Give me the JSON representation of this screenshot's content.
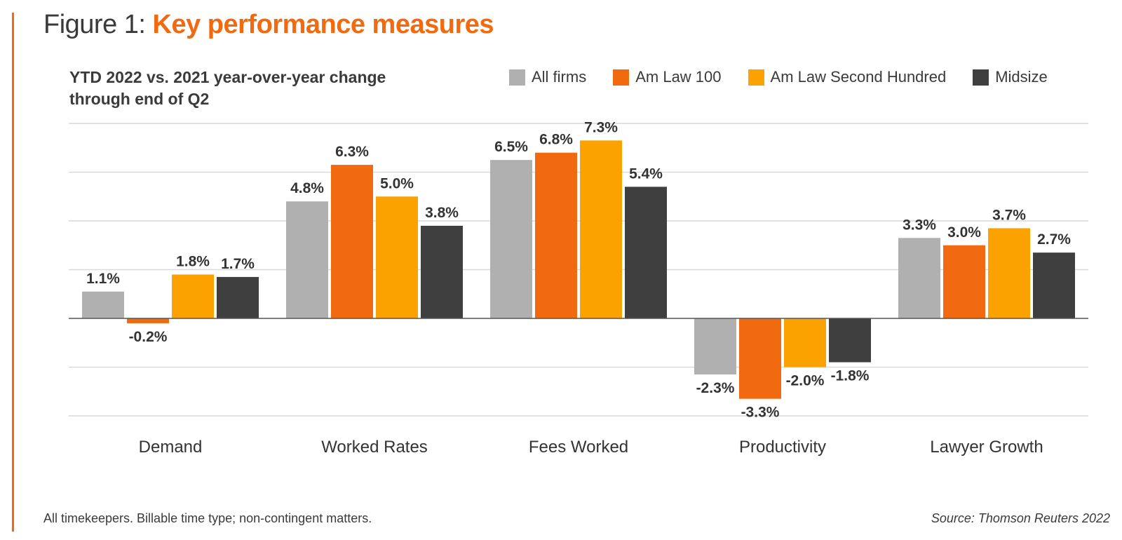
{
  "title_prefix": "Figure 1:",
  "title_main": "Key performance measures",
  "footnote": "All timekeepers. Billable time type; non-contingent matters.",
  "source": "Source: Thomson Reuters 2022",
  "colors": {
    "accent": "#f26a0f",
    "grid": "#d9d9d9",
    "axis": "#555555"
  },
  "chart_data": {
    "type": "bar",
    "title": "YTD 2022 vs. 2021 year-over-year change through end of Q2",
    "subtitle_line1": "YTD 2022 vs. 2021 year-over-year change",
    "subtitle_line2": "through end of Q2",
    "xlabel": "",
    "ylabel": "",
    "ylim": [
      -4,
      8
    ],
    "gridlines": [
      -4,
      -2,
      0,
      2,
      4,
      6,
      8
    ],
    "grid": true,
    "legend_position": "top-right",
    "value_format": "percent, one decimal",
    "categories": [
      "Demand",
      "Worked Rates",
      "Fees Worked",
      "Productivity",
      "Lawyer Growth"
    ],
    "series": [
      {
        "name": "All firms",
        "color": "#b0b0b0",
        "values": [
          1.1,
          4.8,
          6.5,
          -2.3,
          3.3
        ]
      },
      {
        "name": "Am Law 100",
        "color": "#f26a0f",
        "values": [
          -0.2,
          6.3,
          6.8,
          -3.3,
          3.0
        ]
      },
      {
        "name": "Am Law Second Hundred",
        "color": "#fba100",
        "values": [
          1.8,
          5.0,
          7.3,
          -2.0,
          3.7
        ]
      },
      {
        "name": "Midsize",
        "color": "#3f3f3f",
        "values": [
          1.7,
          3.8,
          5.4,
          -1.8,
          2.7
        ]
      }
    ]
  }
}
